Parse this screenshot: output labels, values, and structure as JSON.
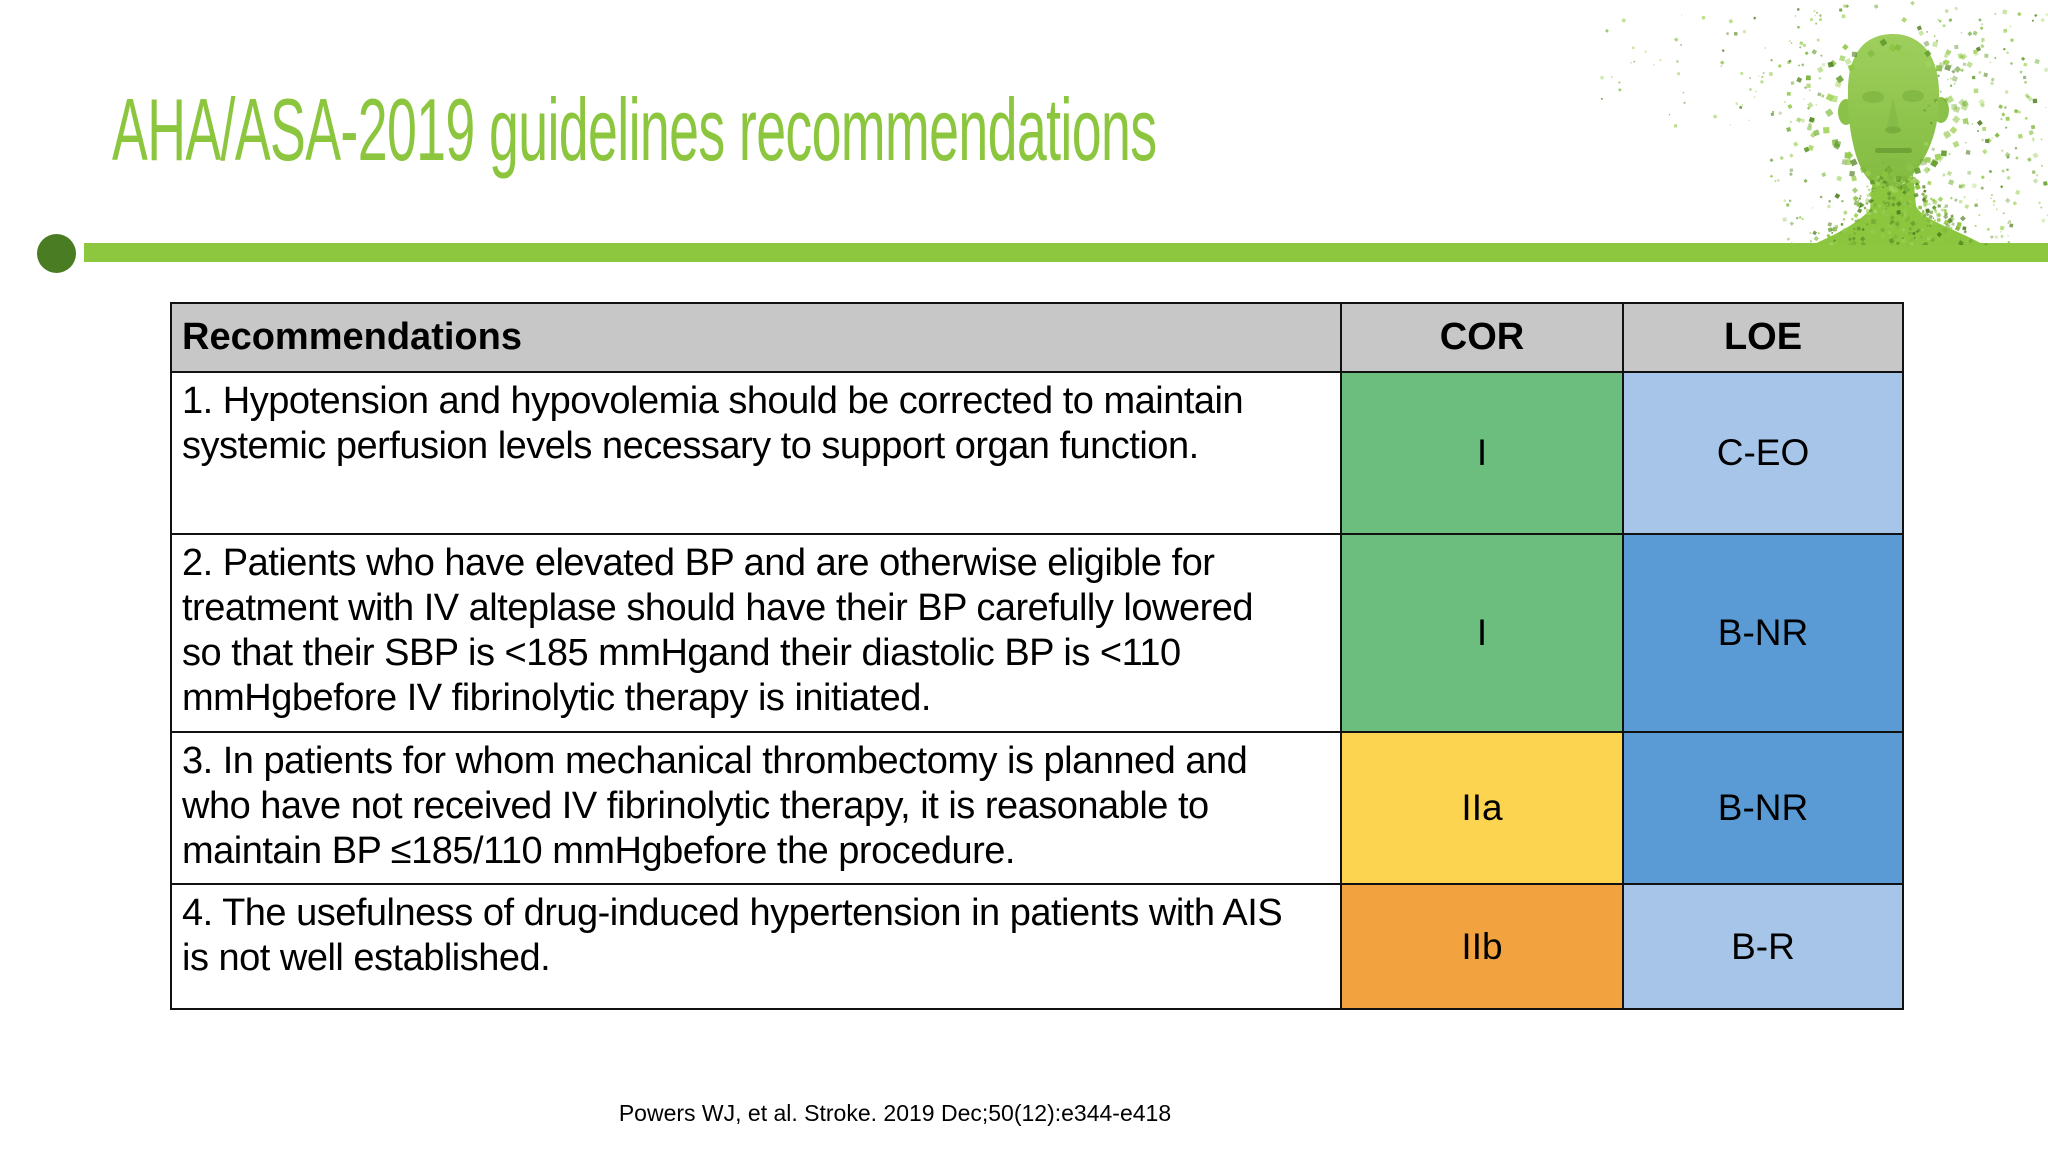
{
  "slide": {
    "title": "AHA/ASA-2019 guidelines recommendations",
    "citation": "Powers WJ, et al. Stroke. 2019 Dec;50(12):e344-e418",
    "decor_image": "green-particle-face"
  },
  "colors": {
    "title_green": "#8CC63F",
    "bar_green": "#8DC63F",
    "bullet_dark_green": "#4A7D23",
    "header_gray": "#C7C7C7",
    "cor_class_I_green": "#6CBE7E",
    "cor_class_IIa_yellow": "#FCD44F",
    "cor_class_IIb_orange": "#F2A340",
    "loe_blue": "#5B9BD5",
    "loe_light_blue": "#A6C5E8",
    "table_border": "#111111"
  },
  "table": {
    "headers": {
      "recommendations": "Recommendations",
      "cor": "COR",
      "loe": "LOE"
    },
    "rows": [
      {
        "recommendation": "1. Hypotension and hypovolemia should be corrected to maintain\nsystemic perfusion levels necessary to support organ function.",
        "cor": "I",
        "loe": "C-EO",
        "cor_color": "#6CBE7E",
        "loe_color": "#A6C5E8"
      },
      {
        "recommendation": "2. Patients who have elevated BP and are otherwise eligible for\ntreatment with IV alteplase should have their BP carefully lowered\nso that their SBP is <185 mmHgand their diastolic BP is <110\nmmHgbefore IV fibrinolytic therapy is initiated.",
        "cor": "I",
        "loe": "B-NR",
        "cor_color": "#6CBE7E",
        "loe_color": "#5B9BD5"
      },
      {
        "recommendation": "3. In patients for whom mechanical thrombectomy is planned and\nwho have not received IV fibrinolytic therapy, it is reasonable to\nmaintain BP ≤185/110 mmHgbefore the procedure.",
        "cor": "IIa",
        "loe": "B-NR",
        "cor_color": "#FCD44F",
        "loe_color": "#5B9BD5"
      },
      {
        "recommendation": "4. The usefulness of drug-induced hypertension in patients with AIS\nis not well established.",
        "cor": "IIb",
        "loe": "B-R",
        "cor_color": "#F2A340",
        "loe_color": "#A6C5E8"
      }
    ]
  }
}
